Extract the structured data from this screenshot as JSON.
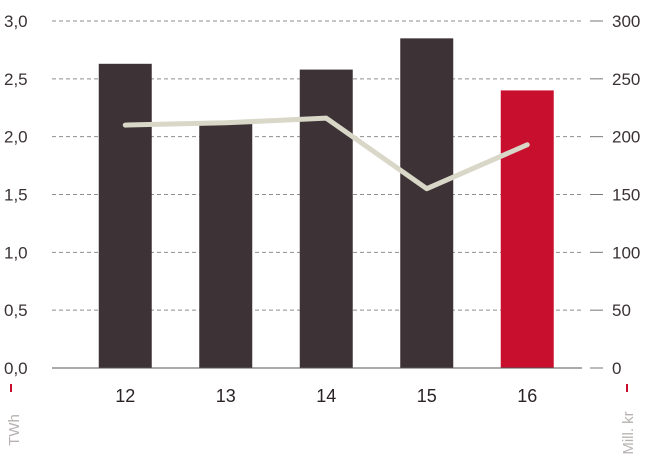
{
  "chart_data": {
    "type": "bar",
    "categories": [
      "12",
      "13",
      "14",
      "15",
      "16"
    ],
    "series": [
      {
        "axis": "left",
        "type": "bar",
        "values": [
          2.63,
          2.11,
          2.58,
          2.85,
          2.4
        ]
      },
      {
        "axis": "right",
        "type": "line",
        "values": [
          210,
          212,
          216,
          155,
          193
        ]
      }
    ],
    "highlight_category": "16",
    "left_axis": {
      "label": "TWh",
      "ylim": [
        0,
        3.0
      ],
      "ticks": [
        "0,0",
        "0,5",
        "1,0",
        "1,5",
        "2,0",
        "2,5",
        "3,0"
      ]
    },
    "right_axis": {
      "label": "Mill. kr",
      "ylim": [
        0,
        300
      ],
      "ticks": [
        "0",
        "50",
        "100",
        "150",
        "200",
        "250",
        "300"
      ]
    },
    "grid": true,
    "colors": {
      "bar": "#3d3337",
      "bar_highlight": "#c8102e",
      "line": "#d9d7c7",
      "grid": "#8e8e8e",
      "axis_marker": "#c8102e"
    }
  }
}
